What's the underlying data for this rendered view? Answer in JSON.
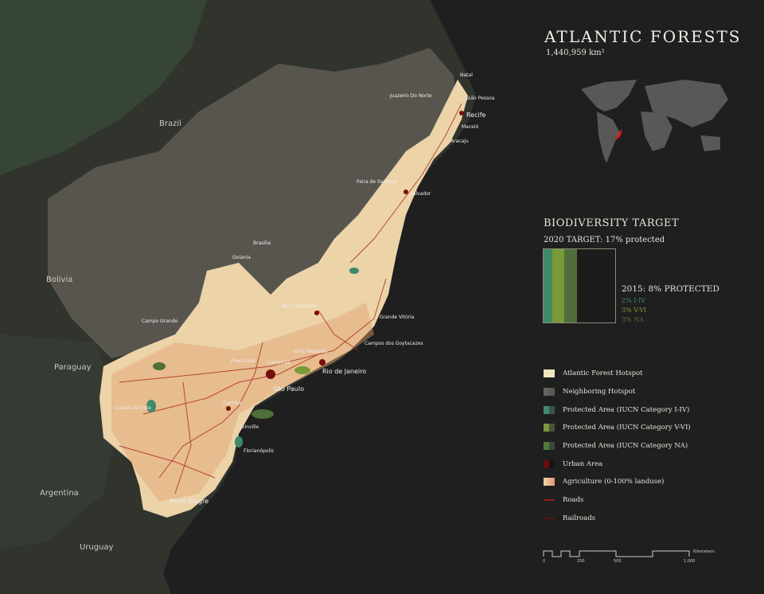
{
  "title": "ATLANTIC FORESTS",
  "area": "1,440,959 km²",
  "colors": {
    "background": "#1f1f1f",
    "land": "#30342d",
    "neighboring_hotspot": "#58554f",
    "atlantic_forest": "#ecd3a8",
    "agriculture": "#e3a070",
    "protected_i_iv": "#3e8a6b",
    "protected_v_vi": "#7a9a38",
    "protected_na": "#4f6e3a",
    "urban": "#7a0d0d",
    "roads": "#a8281c",
    "highlight": "#d61f1f"
  },
  "biodiversity": {
    "heading": "BIODIVERSITY TARGET",
    "target_label": "2020 TARGET: 17% protected",
    "target_percent": 17,
    "protected_2015": "2015: 8% PROTECTED",
    "segments": [
      {
        "label": "2% I-IV",
        "percent": 2,
        "color": "#3e8a6b"
      },
      {
        "label": "3% V-VI",
        "percent": 3,
        "color": "#7a9a38"
      },
      {
        "label": "3% NA",
        "percent": 3,
        "color": "#4f6e3a"
      }
    ]
  },
  "legend": [
    {
      "label": "Atlantic Forest Hotspot",
      "type": "swatch",
      "colors": [
        "#f0e3c0",
        "#f0e3c0"
      ]
    },
    {
      "label": "Neighboring Hotspot",
      "type": "swatch",
      "colors": [
        "#66635d",
        "#5a5853"
      ]
    },
    {
      "label": "Protected Area (IUCN Category I-IV)",
      "type": "swatch",
      "colors": [
        "#3e8a6b",
        "#3b5248"
      ]
    },
    {
      "label": "Protected Area (IUCN Category V-VI)",
      "type": "swatch",
      "colors": [
        "#7a9a38",
        "#4b5238"
      ]
    },
    {
      "label": "Protected Area (IUCN Category NA)",
      "type": "swatch",
      "colors": [
        "#4f7a3a",
        "#3d4a38"
      ]
    },
    {
      "label": "Urban Area",
      "type": "swatch",
      "colors": [
        "#6e0c0c",
        "#151515"
      ]
    },
    {
      "label": "Agriculture (0-100% landuse)",
      "type": "swatch",
      "colors": [
        "#eed9a0",
        "#e3907a"
      ]
    },
    {
      "label": "Roads",
      "type": "line",
      "colors": [
        "#8e1f1a",
        "#8e1f1a"
      ]
    },
    {
      "label": "Railroads",
      "type": "line",
      "colors": [
        "#5a1512",
        "#5a1512"
      ]
    }
  ],
  "scale": {
    "unit": "Kilometers",
    "ticks": [
      "0",
      "250",
      "500",
      "1,000"
    ]
  },
  "countries": [
    "Brazil",
    "Bolivia",
    "Paraguay",
    "Argentina",
    "Uruguay"
  ],
  "cities": [
    "Natal",
    "Juazeiro Do Norte",
    "João Pessoa",
    "Recife",
    "Maceió",
    "Aracaju",
    "Feira de Santana",
    "Salvador",
    "Brasilia",
    "Goiania",
    "Belo Horizonte",
    "Grande Vitória",
    "Campo Grande",
    "Campos dos Goytacazes",
    "Volta Redonda",
    "Rio de Janeiro",
    "Campinas",
    "Piracicaba",
    "São Paulo",
    "Ciudad del Este",
    "Curitiba",
    "Joinville",
    "Florianópolis",
    "Porto Alegre"
  ]
}
